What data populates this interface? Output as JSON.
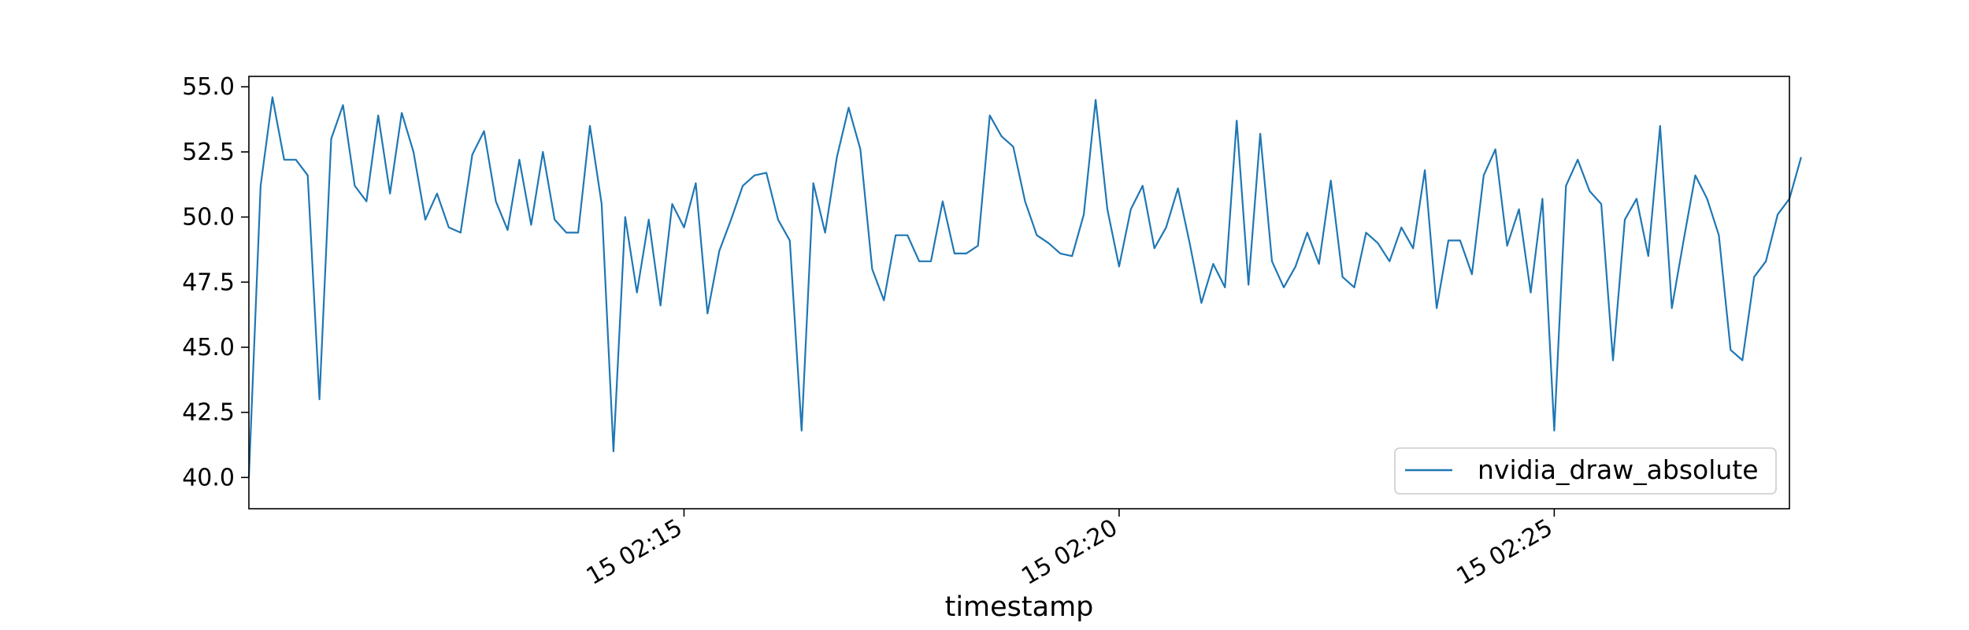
{
  "chart_data": {
    "type": "line",
    "xlabel": "timestamp",
    "ylabel": "",
    "ylim": [
      38.8,
      55.4
    ],
    "y_ticks": [
      40.0,
      42.5,
      45.0,
      47.5,
      50.0,
      52.5,
      55.0
    ],
    "y_tick_labels": [
      "40.0",
      "42.5",
      "45.0",
      "47.5",
      "50.0",
      "52.5",
      "55.0"
    ],
    "x_ticks": [
      {
        "at": 37,
        "label": "15 02:15"
      },
      {
        "at": 74,
        "label": "15 02:20"
      },
      {
        "at": 111,
        "label": "15 02:25"
      }
    ],
    "xlim": [
      0,
      131
    ],
    "legend_position": "lower-right",
    "grid": false,
    "line_color": "#1f77b4",
    "series": [
      {
        "name": "nvidia_draw_absolute",
        "values": [
          40.0,
          51.2,
          54.6,
          52.2,
          52.2,
          51.6,
          43.0,
          53.0,
          54.3,
          51.2,
          50.6,
          53.9,
          50.9,
          54.0,
          52.5,
          49.9,
          50.9,
          49.6,
          49.4,
          52.4,
          53.3,
          50.6,
          49.5,
          52.2,
          49.7,
          52.5,
          49.9,
          49.4,
          49.4,
          53.5,
          50.5,
          41.0,
          50.0,
          47.1,
          49.9,
          46.6,
          50.5,
          49.6,
          51.3,
          46.3,
          48.7,
          49.9,
          51.2,
          51.6,
          51.7,
          49.9,
          49.1,
          41.8,
          51.3,
          49.4,
          52.3,
          54.2,
          52.6,
          48.0,
          46.8,
          49.3,
          49.3,
          48.3,
          48.3,
          50.6,
          48.6,
          48.6,
          48.9,
          53.9,
          53.1,
          52.7,
          50.6,
          49.3,
          49.0,
          48.6,
          48.5,
          50.1,
          54.5,
          50.3,
          48.1,
          50.3,
          51.2,
          48.8,
          49.6,
          51.1,
          49.0,
          46.7,
          48.2,
          47.3,
          53.7,
          47.4,
          53.2,
          48.3,
          47.3,
          48.1,
          49.4,
          48.2,
          51.4,
          47.7,
          47.3,
          49.4,
          49.0,
          48.3,
          49.6,
          48.8,
          51.8,
          46.5,
          49.1,
          49.1,
          47.8,
          51.6,
          52.6,
          48.9,
          50.3,
          47.1,
          50.7,
          41.8,
          51.2,
          52.2,
          51.0,
          50.5,
          44.5,
          49.9,
          50.7,
          48.5,
          53.5,
          46.5,
          49.1,
          51.6,
          50.7,
          49.3,
          44.9,
          44.5,
          47.7,
          48.3,
          50.1,
          50.7,
          52.3
        ]
      }
    ]
  }
}
